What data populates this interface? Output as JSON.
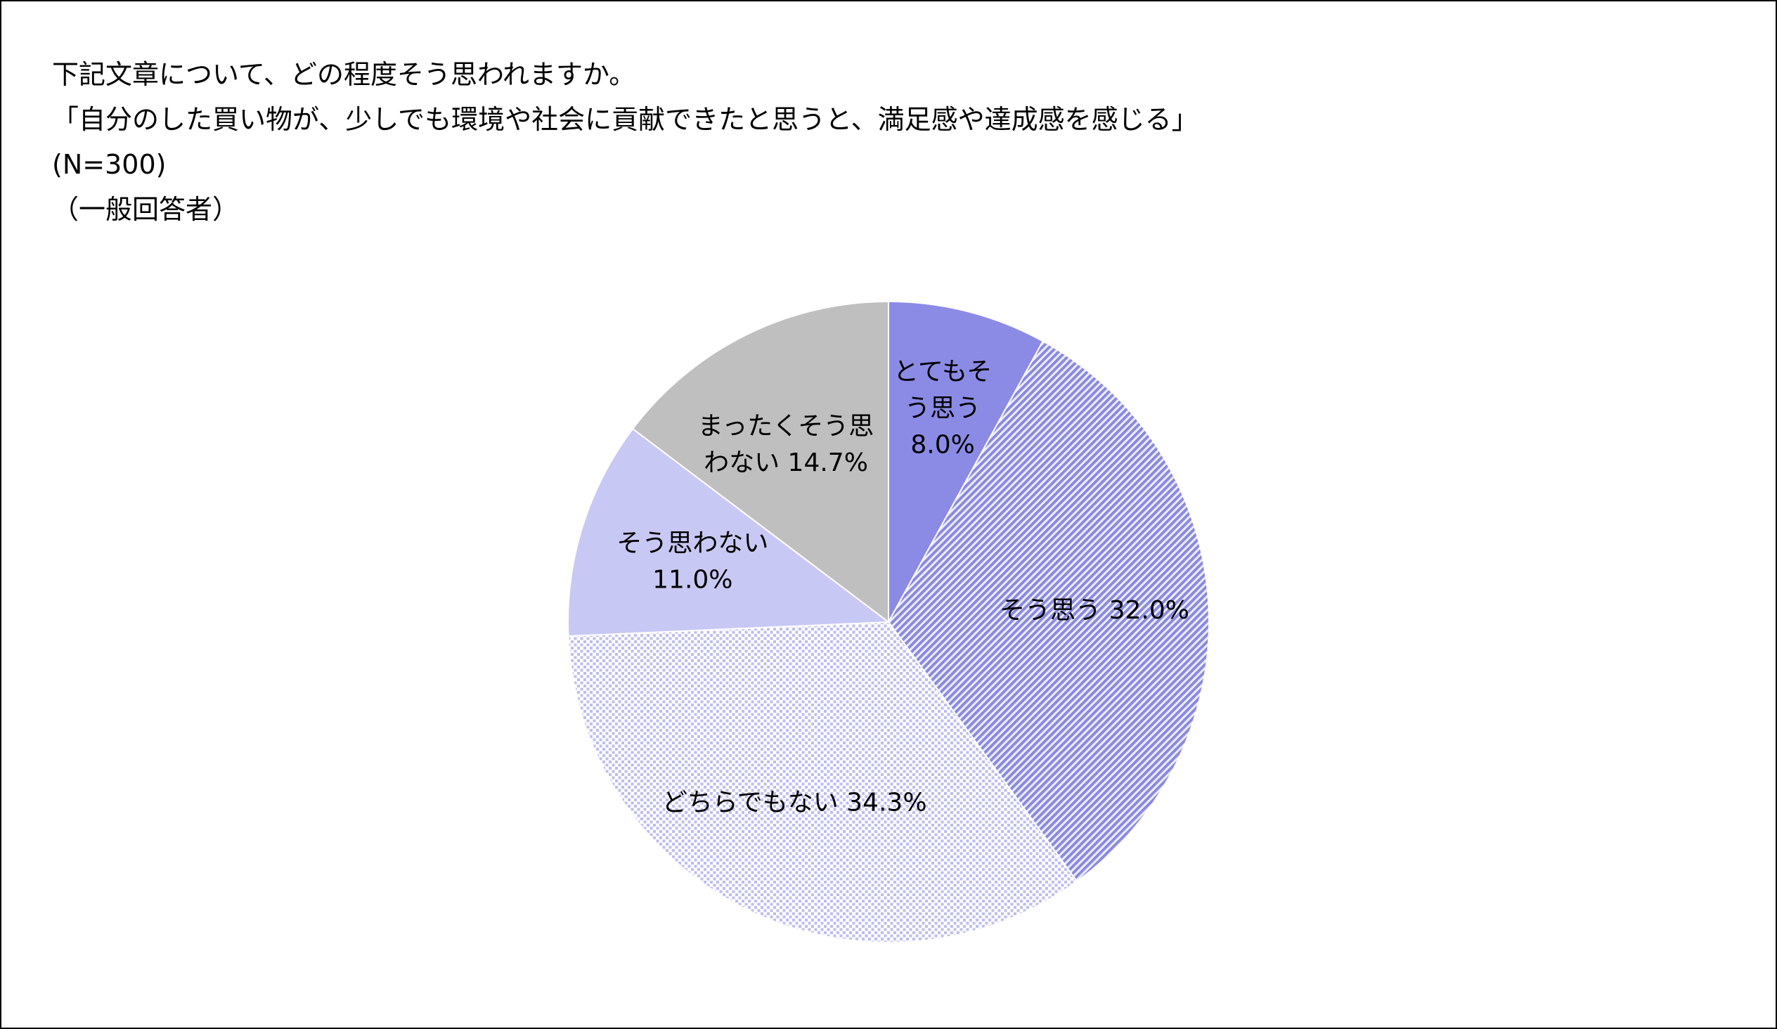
{
  "chart_data": {
    "type": "pie",
    "title": [
      "下記文章について、どの程度そう思われますか。",
      "「自分のした買い物が、少しでも環境や社会に貢献できたと思うと、満足感や達成感を感じる」",
      "(N=300)",
      "（一般回答者）"
    ],
    "unit": "%",
    "legend": "none",
    "slices": [
      {
        "name": "とてもそう思う",
        "value": 8.0,
        "value_label": "8.0%",
        "label_lines": [
          "とてもそ",
          "う思う",
          "8.0%"
        ],
        "color": "#8b8be6",
        "pattern": "solid"
      },
      {
        "name": "そう思う",
        "value": 32.0,
        "value_label": "32.0%",
        "label_lines": [
          "そう思う 32.0%"
        ],
        "color": "#9e9ee6",
        "pattern": "diagonal-hatch"
      },
      {
        "name": "どちらでもない",
        "value": 34.3,
        "value_label": "34.3%",
        "label_lines": [
          "どちらでもない 34.3%"
        ],
        "color": "#c9c9f2",
        "pattern": "dotted-grid"
      },
      {
        "name": "そう思わない",
        "value": 11.0,
        "value_label": "11.0%",
        "label_lines": [
          "そう思わない",
          "11.0%"
        ],
        "color": "#c8c8f4",
        "pattern": "solid"
      },
      {
        "name": "まったくそう思わない",
        "value": 14.7,
        "value_label": "14.7%",
        "label_lines": [
          "まったくそう思",
          "わない 14.7%"
        ],
        "color": "#bfbfbf",
        "pattern": "solid"
      }
    ]
  }
}
